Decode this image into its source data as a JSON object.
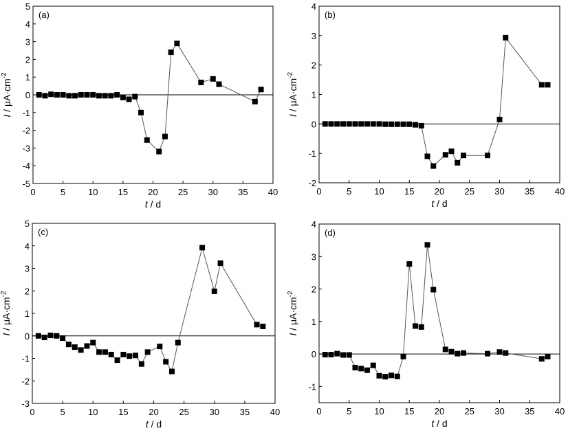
{
  "chart_data": [
    {
      "type": "line",
      "panel_label": "(a)",
      "xlabel": {
        "var": "t",
        "unit": " / d"
      },
      "ylabel": {
        "var": "I",
        "unit": " / μA·cm",
        "sup": "-2"
      },
      "xlim": [
        0,
        40
      ],
      "ylim": [
        -5,
        5
      ],
      "xticks": [
        0,
        5,
        10,
        15,
        20,
        25,
        30,
        35,
        40
      ],
      "yticks": [
        -5,
        -4,
        -3,
        -2,
        -1,
        0,
        1,
        2,
        3,
        4,
        5
      ],
      "x": [
        1,
        2,
        3,
        4,
        5,
        6,
        7,
        8,
        9,
        10,
        11,
        12,
        13,
        14,
        15,
        16,
        17,
        18,
        19,
        21,
        22,
        23,
        24,
        28,
        30,
        31,
        37,
        38
      ],
      "y": [
        0,
        -0.05,
        0.03,
        0,
        0,
        -0.05,
        -0.05,
        0,
        0,
        0,
        -0.05,
        -0.05,
        -0.05,
        0,
        -0.15,
        -0.25,
        -0.1,
        -1.0,
        -2.55,
        -3.2,
        -2.35,
        2.4,
        2.9,
        0.7,
        0.9,
        0.6,
        -0.38,
        0.3
      ],
      "marker": "square",
      "zero_line": true
    },
    {
      "type": "line",
      "panel_label": "(b)",
      "xlabel": {
        "var": "t",
        "unit": " / d"
      },
      "ylabel": {
        "var": "I",
        "unit": " / μA·cm",
        "sup": "-2"
      },
      "xlim": [
        0,
        40
      ],
      "ylim": [
        -2,
        4
      ],
      "xticks": [
        0,
        5,
        10,
        15,
        20,
        25,
        30,
        35,
        40
      ],
      "yticks": [
        -2,
        -1,
        0,
        1,
        2,
        3,
        4
      ],
      "x": [
        1,
        2,
        3,
        4,
        5,
        6,
        7,
        8,
        9,
        10,
        11,
        12,
        13,
        14,
        15,
        16,
        17,
        18,
        19,
        21,
        22,
        23,
        24,
        28,
        30,
        31,
        37,
        38
      ],
      "y": [
        0,
        0,
        0,
        0,
        0,
        0,
        0,
        0,
        0,
        0,
        -0.01,
        -0.01,
        -0.01,
        -0.01,
        -0.01,
        -0.03,
        -0.06,
        -1.1,
        -1.43,
        -1.05,
        -0.93,
        -1.32,
        -1.07,
        -1.07,
        0.15,
        2.93,
        1.33,
        1.33
      ],
      "marker": "square",
      "zero_line": true
    },
    {
      "type": "line",
      "panel_label": "(c)",
      "xlabel": {
        "var": "t",
        "unit": " / d"
      },
      "ylabel": {
        "var": "I",
        "unit": " / μA·cm",
        "sup": "-2"
      },
      "xlim": [
        0,
        40
      ],
      "ylim": [
        -3,
        5
      ],
      "xticks": [
        0,
        5,
        10,
        15,
        20,
        25,
        30,
        35,
        40
      ],
      "yticks": [
        -3,
        -2,
        -1,
        0,
        1,
        2,
        3,
        4,
        5
      ],
      "x": [
        1,
        2,
        3,
        4,
        5,
        6,
        7,
        8,
        9,
        10,
        11,
        12,
        13,
        14,
        15,
        16,
        17,
        18,
        19,
        21,
        22,
        23,
        24,
        28,
        30,
        31,
        37,
        38
      ],
      "y": [
        0,
        -0.07,
        0.02,
        0,
        -0.1,
        -0.38,
        -0.5,
        -0.63,
        -0.45,
        -0.3,
        -0.72,
        -0.72,
        -0.83,
        -1.08,
        -0.83,
        -0.9,
        -0.87,
        -1.25,
        -0.72,
        -0.47,
        -1.15,
        -1.58,
        -0.3,
        3.92,
        1.98,
        3.23,
        0.5,
        0.42
      ],
      "marker": "square",
      "zero_line": true
    },
    {
      "type": "line",
      "panel_label": "(d)",
      "xlabel": {
        "var": "t",
        "unit": " / d"
      },
      "ylabel": {
        "var": "I",
        "unit": " / μA·cm",
        "sup": "-2"
      },
      "xlim": [
        0,
        40
      ],
      "ylim": [
        -1.5,
        4
      ],
      "xticks": [
        0,
        5,
        10,
        15,
        20,
        25,
        30,
        35,
        40
      ],
      "yticks": [
        -1,
        0,
        1,
        2,
        3,
        4
      ],
      "x": [
        1,
        2,
        3,
        4,
        5,
        6,
        7,
        8,
        9,
        10,
        11,
        12,
        13,
        14,
        15,
        16,
        17,
        18,
        19,
        21,
        22,
        23,
        24,
        28,
        30,
        31,
        37,
        38
      ],
      "y": [
        -0.02,
        -0.02,
        0.01,
        -0.03,
        -0.03,
        -0.42,
        -0.45,
        -0.5,
        -0.35,
        -0.67,
        -0.7,
        -0.66,
        -0.69,
        -0.08,
        2.77,
        0.86,
        0.83,
        3.36,
        1.98,
        0.14,
        0.07,
        0.01,
        0.03,
        0.01,
        0.06,
        0.03,
        -0.15,
        -0.08
      ],
      "marker": "square",
      "zero_line": true
    }
  ]
}
